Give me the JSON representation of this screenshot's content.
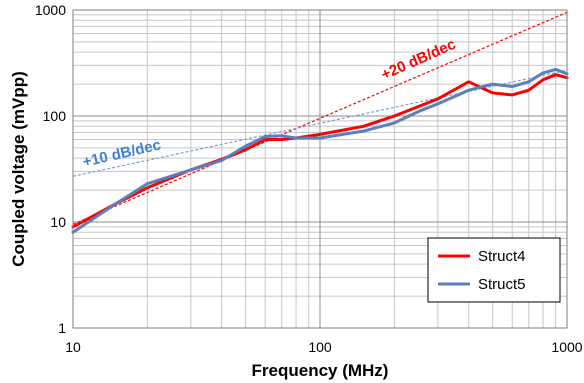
{
  "chart_data": {
    "type": "line",
    "xlabel": "Frequency (MHz)",
    "ylabel": "Coupled voltage (mVpp)",
    "xscale": "log",
    "yscale": "log",
    "xlim": [
      10,
      1000
    ],
    "ylim": [
      1,
      1000
    ],
    "grid": true,
    "x_ticks": [
      "10",
      "100",
      "1000"
    ],
    "y_ticks": [
      "1",
      "10",
      "100",
      "1000"
    ],
    "legend_position": "bottom-right",
    "series": [
      {
        "name": "Struct4",
        "color": "#ff0000",
        "x": [
          10,
          15,
          20,
          30,
          40,
          50,
          60,
          70,
          80,
          100,
          150,
          200,
          300,
          400,
          500,
          600,
          700,
          800,
          900,
          1000
        ],
        "y": [
          9,
          15,
          21,
          31,
          39,
          48,
          60,
          60,
          62,
          67,
          80,
          100,
          145,
          210,
          165,
          158,
          175,
          220,
          245,
          230
        ]
      },
      {
        "name": "Struct5",
        "color": "#5b7fbd",
        "x": [
          10,
          15,
          20,
          30,
          40,
          50,
          60,
          70,
          80,
          100,
          150,
          200,
          250,
          300,
          400,
          500,
          600,
          700,
          800,
          900,
          1000
        ],
        "y": [
          8,
          15,
          23,
          31,
          38,
          52,
          64,
          65,
          62,
          62,
          72,
          86,
          110,
          130,
          175,
          200,
          190,
          210,
          255,
          275,
          250
        ]
      }
    ],
    "reference_lines": [
      {
        "label": "+20 dB/dec",
        "color": "#ff0000",
        "x": [
          10,
          1000
        ],
        "y": [
          9.5,
          950
        ]
      },
      {
        "label": "+10 dB/dec",
        "color": "#7a9fd3",
        "x": [
          10,
          1000
        ],
        "y": [
          27,
          270
        ]
      }
    ],
    "annotations": [
      {
        "text": "+20 dB/dec",
        "color": "#ff0000"
      },
      {
        "text": "+10 dB/dec",
        "color": "#3f7fd0"
      }
    ]
  }
}
